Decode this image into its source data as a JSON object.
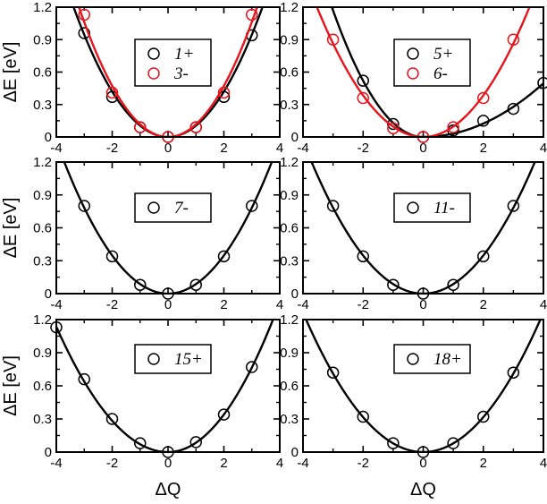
{
  "figure": {
    "xlabel": "ΔQ",
    "ylabel": "ΔE [eV]",
    "colors": {
      "black": "#000000",
      "red": "#e8141c"
    }
  },
  "chart_data": [
    {
      "type": "line",
      "panel": "top-left",
      "xlim": [
        -4,
        4
      ],
      "ylim": [
        0,
        1.2
      ],
      "xticks": [
        "-4",
        "-2",
        "0",
        "2",
        "4"
      ],
      "yticks": [
        "0",
        "0.3",
        "0.6",
        "0.9",
        "1.2"
      ],
      "xlabel": "",
      "ylabel": "ΔE [eV]",
      "legend_position": "top-center",
      "series": [
        {
          "name": "1+",
          "color": "#000000",
          "marker": "open-circle",
          "points_x": [
            -3,
            -2,
            -1,
            0,
            1,
            2,
            3
          ],
          "points_y": [
            0.96,
            0.37,
            0.09,
            0.0,
            0.09,
            0.37,
            0.94
          ],
          "fit_curvature": 0.105
        },
        {
          "name": "3-",
          "color": "#e8141c",
          "marker": "open-circle",
          "points_x": [
            -3,
            -2,
            -1,
            0,
            1,
            2,
            3
          ],
          "points_y": [
            1.13,
            0.41,
            0.09,
            0.0,
            0.09,
            0.41,
            1.13
          ],
          "fit_curvature": 0.118
        }
      ]
    },
    {
      "type": "line",
      "panel": "top-right",
      "xlim": [
        -4,
        4
      ],
      "ylim": [
        0,
        1.2
      ],
      "xticks": [
        "-4",
        "-2",
        "0",
        "2",
        "4"
      ],
      "yticks": [
        "0",
        "0.3",
        "0.6",
        "0.9",
        "1.2"
      ],
      "xlabel": "",
      "ylabel": "",
      "legend_position": "top-center",
      "series": [
        {
          "name": "5+",
          "color": "#000000",
          "marker": "open-circle",
          "points_x": [
            -2,
            -1,
            0,
            1,
            2,
            3,
            4
          ],
          "points_y": [
            0.52,
            0.12,
            0.0,
            0.06,
            0.15,
            0.26,
            0.5
          ],
          "fit_left_curvature": 0.13,
          "fit_right_curvature": 0.031
        },
        {
          "name": "6-",
          "color": "#e8141c",
          "marker": "open-circle",
          "points_x": [
            -3,
            -2,
            -1,
            0,
            1,
            2,
            3
          ],
          "points_y": [
            0.9,
            0.36,
            0.08,
            0.0,
            0.09,
            0.36,
            0.9
          ],
          "fit_curvature": 0.096
        }
      ]
    },
    {
      "type": "line",
      "panel": "middle-left",
      "xlim": [
        -4,
        4
      ],
      "ylim": [
        0,
        1.2
      ],
      "xticks": [
        "-4",
        "-2",
        "0",
        "2",
        "4"
      ],
      "yticks": [
        "0",
        "0.3",
        "0.6",
        "0.9",
        "1.2"
      ],
      "xlabel": "",
      "ylabel": "ΔE [eV]",
      "legend_position": "top-center",
      "series": [
        {
          "name": "7-",
          "color": "#000000",
          "marker": "open-circle",
          "points_x": [
            -3,
            -2,
            -1,
            0,
            1,
            2,
            3
          ],
          "points_y": [
            0.8,
            0.34,
            0.08,
            0.0,
            0.08,
            0.34,
            0.8
          ],
          "fit_curvature": 0.087
        }
      ]
    },
    {
      "type": "line",
      "panel": "middle-right",
      "xlim": [
        -4,
        4
      ],
      "ylim": [
        0,
        1.2
      ],
      "xticks": [
        "-4",
        "-2",
        "0",
        "2",
        "4"
      ],
      "yticks": [
        "0",
        "0.3",
        "0.6",
        "0.9",
        "1.2"
      ],
      "xlabel": "",
      "ylabel": "",
      "legend_position": "top-center",
      "series": [
        {
          "name": "11-",
          "color": "#000000",
          "marker": "open-circle",
          "points_x": [
            -3,
            -2,
            -1,
            0,
            1,
            2,
            3
          ],
          "points_y": [
            0.8,
            0.34,
            0.08,
            0.0,
            0.08,
            0.34,
            0.8
          ],
          "fit_curvature": 0.087
        }
      ]
    },
    {
      "type": "line",
      "panel": "bottom-left",
      "xlim": [
        -4,
        4
      ],
      "ylim": [
        0,
        1.2
      ],
      "xticks": [
        "-4",
        "-2",
        "0",
        "2",
        "4"
      ],
      "yticks": [
        "0",
        "0.3",
        "0.6",
        "0.9",
        "1.2"
      ],
      "xlabel": "ΔQ",
      "ylabel": "ΔE [eV]",
      "legend_position": "top-center",
      "series": [
        {
          "name": "15+",
          "color": "#000000",
          "marker": "open-circle",
          "points_x": [
            -4,
            -3,
            -2,
            -1,
            0,
            1,
            2,
            3
          ],
          "points_y": [
            1.13,
            0.66,
            0.3,
            0.08,
            0.0,
            0.09,
            0.34,
            0.77
          ],
          "fit_left_curvature": 0.071,
          "fit_right_curvature": 0.085
        }
      ]
    },
    {
      "type": "line",
      "panel": "bottom-right",
      "xlim": [
        -4,
        4
      ],
      "ylim": [
        0,
        1.2
      ],
      "xticks": [
        "-4",
        "-2",
        "0",
        "2",
        "4"
      ],
      "yticks": [
        "0",
        "0.3",
        "0.6",
        "0.9",
        "1.2"
      ],
      "xlabel": "ΔQ",
      "ylabel": "",
      "legend_position": "top-center",
      "series": [
        {
          "name": "18+",
          "color": "#000000",
          "marker": "open-circle",
          "points_x": [
            -3,
            -2,
            -1,
            0,
            1,
            2,
            3
          ],
          "points_y": [
            0.72,
            0.32,
            0.08,
            0.0,
            0.08,
            0.32,
            0.72
          ],
          "fit_curvature": 0.079
        }
      ]
    }
  ]
}
